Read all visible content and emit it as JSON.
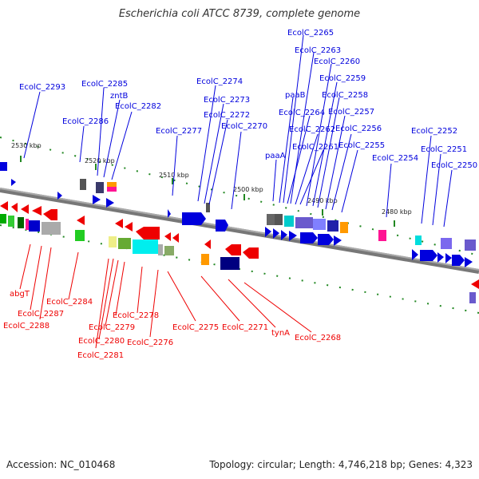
{
  "title": "Escherichia coli ATCC 8739, complete genome",
  "footer": {
    "accession": "Accession: NC_010468",
    "topology": "Topology: circular; Length: 4,746,218 bp; Genes: 4,323"
  },
  "colors": {
    "forward": "#0000dd",
    "reverse": "#ee0000",
    "backbone": "#888888",
    "tick": "#228822"
  },
  "scale_ticks": [
    "2530 kbp",
    "2520 kbp",
    "2510 kbp",
    "2500 kbp",
    "2490 kbp",
    "2480 kbp"
  ],
  "top_labels": [
    "EcolC_2265",
    "EcolC_2263",
    "EcolC_2260",
    "EcolC_2259",
    "EcolC_2258",
    "EcolC_2257",
    "EcolC_2256",
    "EcolC_2255",
    "EcolC_2264",
    "EcolC_2262",
    "EcolC_2261",
    "paaB",
    "paaA",
    "EcolC_2293",
    "EcolC_2285",
    "zntB",
    "EcolC_2282",
    "EcolC_2286",
    "EcolC_2274",
    "EcolC_2273",
    "EcolC_2272",
    "EcolC_2270",
    "EcolC_2277",
    "EcolC_2252",
    "EcolC_2251",
    "EcolC_2250",
    "EcolC_2254"
  ],
  "bottom_labels": [
    "abgT",
    "EcolC_2287",
    "EcolC_2288",
    "EcolC_2284",
    "EcolC_2279",
    "EcolC_2278",
    "EcolC_2280",
    "EcolC_2281",
    "EcolC_2276",
    "EcolC_2275",
    "EcolC_2271",
    "tynA",
    "EcolC_2268"
  ]
}
